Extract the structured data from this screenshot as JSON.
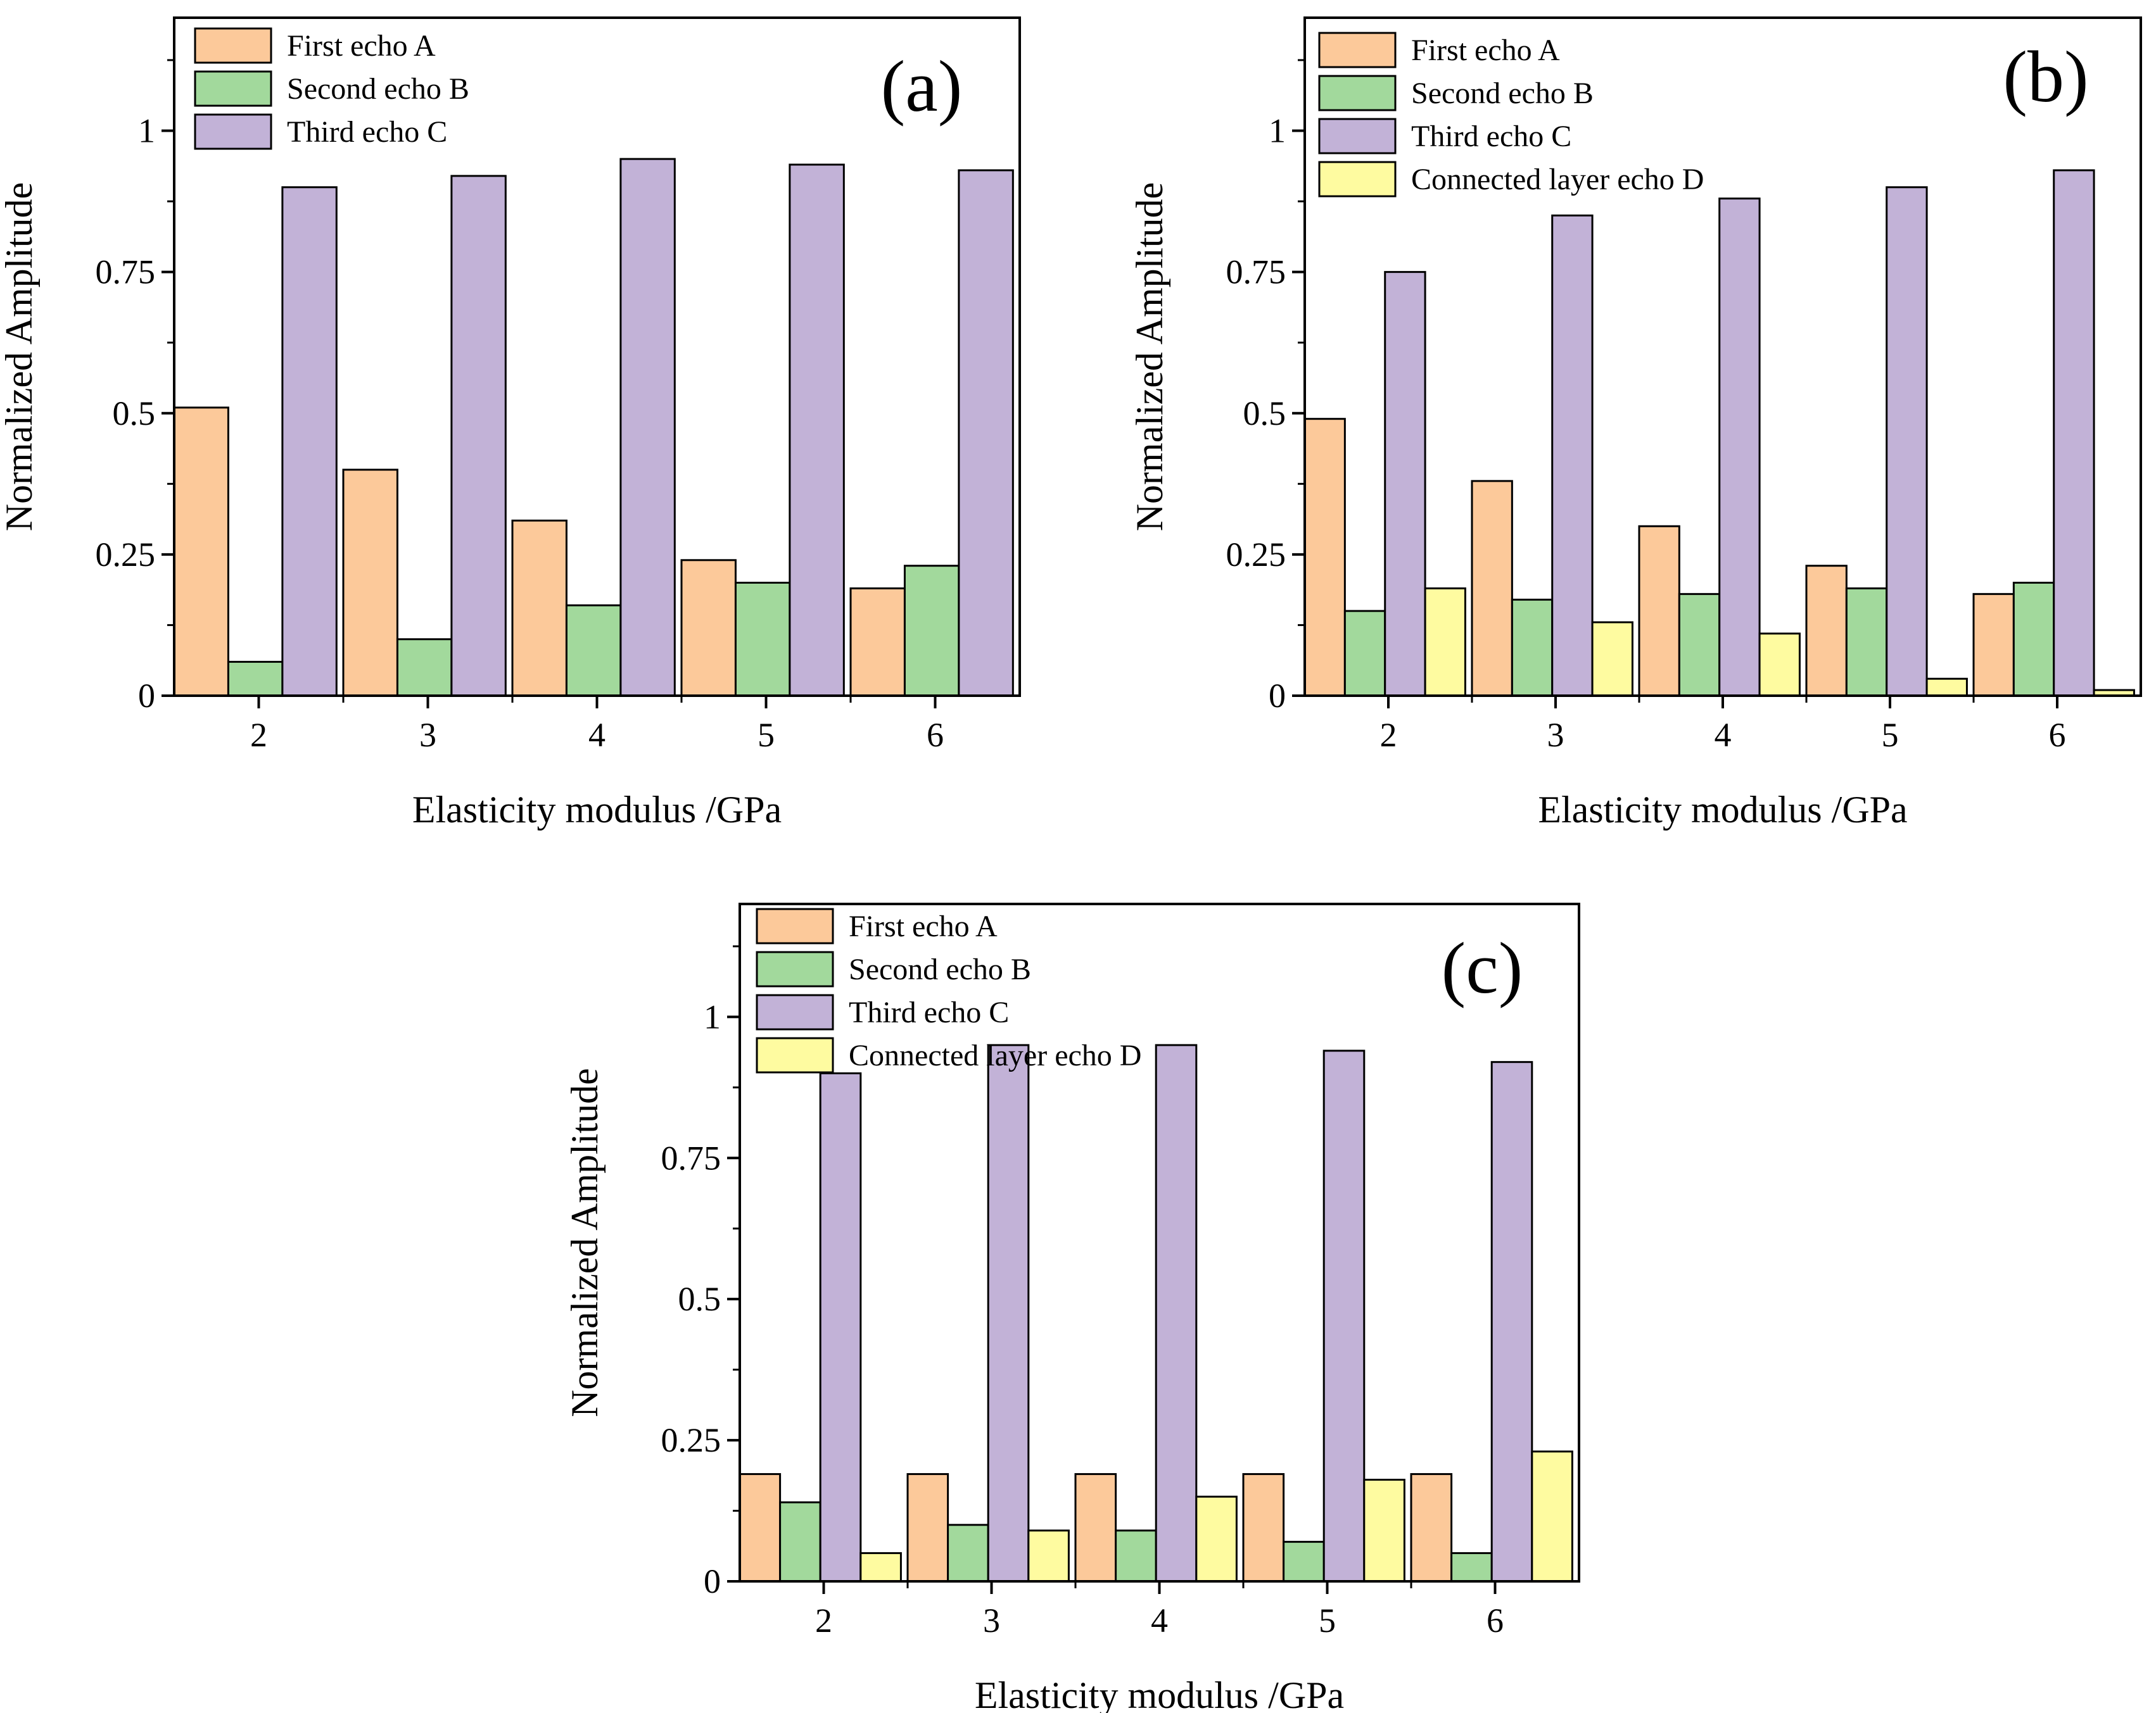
{
  "colors": {
    "first": "#FCC99A",
    "second": "#A2D99C",
    "third": "#C2B2D7",
    "connected": "#FEFBA0"
  },
  "chart_data": [
    {
      "type": "bar",
      "panel": "(a)",
      "xlabel": "Elasticity modulus /GPa",
      "ylabel": "Normalized Amplitude",
      "categories": [
        "2",
        "3",
        "4",
        "5",
        "6"
      ],
      "ylim": [
        0,
        1.2
      ],
      "yticks": [
        "0",
        "0.25",
        "0.5",
        "0.75",
        "1"
      ],
      "grid": false,
      "legend_position": "top-left",
      "series": [
        {
          "name": "First echo A",
          "color_key": "first",
          "values": [
            0.51,
            0.4,
            0.31,
            0.24,
            0.19
          ]
        },
        {
          "name": "Second echo B",
          "color_key": "second",
          "values": [
            0.06,
            0.1,
            0.16,
            0.2,
            0.23
          ]
        },
        {
          "name": "Third echo C",
          "color_key": "third",
          "values": [
            0.9,
            0.92,
            0.95,
            0.94,
            0.93
          ]
        }
      ]
    },
    {
      "type": "bar",
      "panel": "(b)",
      "xlabel": "Elasticity modulus /GPa",
      "ylabel": "Normalized Amplitude",
      "categories": [
        "2",
        "3",
        "4",
        "5",
        "6"
      ],
      "ylim": [
        0,
        1.2
      ],
      "yticks": [
        "0",
        "0.25",
        "0.5",
        "0.75",
        "1"
      ],
      "grid": false,
      "legend_position": "top-left",
      "series": [
        {
          "name": "First echo A",
          "color_key": "first",
          "values": [
            0.49,
            0.38,
            0.3,
            0.23,
            0.18
          ]
        },
        {
          "name": "Second echo B",
          "color_key": "second",
          "values": [
            0.15,
            0.17,
            0.18,
            0.19,
            0.2
          ]
        },
        {
          "name": "Third echo C",
          "color_key": "third",
          "values": [
            0.75,
            0.85,
            0.88,
            0.9,
            0.93
          ]
        },
        {
          "name": "Connected layer echo D",
          "color_key": "connected",
          "values": [
            0.19,
            0.13,
            0.11,
            0.03,
            0.01
          ]
        }
      ]
    },
    {
      "type": "bar",
      "panel": "(c)",
      "xlabel": "Elasticity modulus /GPa",
      "ylabel": "Normalized Amplitude",
      "categories": [
        "2",
        "3",
        "4",
        "5",
        "6"
      ],
      "ylim": [
        0,
        1.2
      ],
      "yticks": [
        "0",
        "0.25",
        "0.5",
        "0.75",
        "1"
      ],
      "grid": false,
      "legend_position": "top-left",
      "series": [
        {
          "name": "First echo A",
          "color_key": "first",
          "values": [
            0.19,
            0.19,
            0.19,
            0.19,
            0.19
          ]
        },
        {
          "name": "Second echo B",
          "color_key": "second",
          "values": [
            0.14,
            0.1,
            0.09,
            0.07,
            0.05
          ]
        },
        {
          "name": "Third echo C",
          "color_key": "third",
          "values": [
            0.9,
            0.95,
            0.95,
            0.94,
            0.92
          ]
        },
        {
          "name": "Connected layer echo D",
          "color_key": "connected",
          "values": [
            0.05,
            0.09,
            0.15,
            0.18,
            0.23
          ]
        }
      ]
    }
  ]
}
